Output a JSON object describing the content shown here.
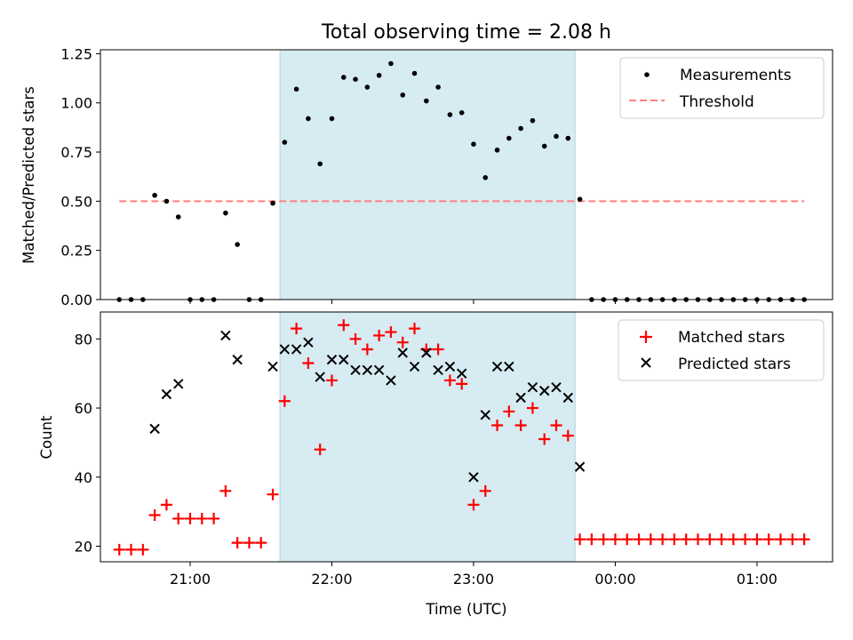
{
  "chart_data": [
    {
      "type": "scatter",
      "title": "Total observing time = 2.08 h",
      "xlabel": "",
      "ylabel": "Matched/Predicted stars",
      "xlim": [
        "20:22",
        "01:32"
      ],
      "ylim": [
        0,
        1.27
      ],
      "yticks": [
        0.0,
        0.25,
        0.5,
        0.75,
        1.0,
        1.25
      ],
      "ytick_labels": [
        "0.00",
        "0.25",
        "0.50",
        "0.75",
        "1.00",
        "1.25"
      ],
      "shaded_interval": [
        "21:38",
        "23:43"
      ],
      "legend_position": "top-right",
      "series": [
        {
          "name": "Measurements",
          "marker": "dot",
          "color": "#000000",
          "x": [
            "20:30",
            "20:35",
            "20:40",
            "20:45",
            "20:50",
            "20:55",
            "21:00",
            "21:05",
            "21:10",
            "21:15",
            "21:20",
            "21:25",
            "21:30",
            "21:35",
            "21:40",
            "21:45",
            "21:50",
            "21:55",
            "22:00",
            "22:05",
            "22:10",
            "22:15",
            "22:20",
            "22:25",
            "22:30",
            "22:35",
            "22:40",
            "22:45",
            "22:50",
            "22:55",
            "23:00",
            "23:05",
            "23:10",
            "23:15",
            "23:20",
            "23:25",
            "23:30",
            "23:35",
            "23:40",
            "23:45",
            "23:50",
            "23:55",
            "00:00",
            "00:05",
            "00:10",
            "00:15",
            "00:20",
            "00:25",
            "00:30",
            "00:35",
            "00:40",
            "00:45",
            "00:50",
            "00:55",
            "01:00",
            "01:05",
            "01:10",
            "01:15",
            "01:20"
          ],
          "y": [
            0.0,
            0.0,
            0.0,
            0.53,
            0.5,
            0.42,
            0.0,
            0.0,
            0.0,
            0.44,
            0.28,
            0.0,
            0.0,
            0.49,
            0.8,
            1.07,
            0.92,
            0.69,
            0.92,
            1.13,
            1.12,
            1.08,
            1.14,
            1.2,
            1.04,
            1.15,
            1.01,
            1.08,
            0.94,
            0.95,
            0.79,
            0.62,
            0.76,
            0.82,
            0.87,
            0.91,
            0.78,
            0.83,
            0.82,
            0.51,
            0.0,
            0.0,
            0.0,
            0.0,
            0.0,
            0.0,
            0.0,
            0.0,
            0.0,
            0.0,
            0.0,
            0.0,
            0.0,
            0.0,
            0.0,
            0.0,
            0.0,
            0.0,
            0.0
          ]
        },
        {
          "name": "Threshold",
          "style": "dashed",
          "color": "#ff7f7f",
          "x": [
            "20:30",
            "01:20"
          ],
          "y": [
            0.5,
            0.5
          ]
        }
      ]
    },
    {
      "type": "scatter",
      "title": "",
      "xlabel": "Time (UTC)",
      "ylabel": "Count",
      "xlim": [
        "20:22",
        "01:32"
      ],
      "ylim": [
        15.5,
        87.8
      ],
      "yticks": [
        20,
        40,
        60,
        80
      ],
      "ytick_labels": [
        "20",
        "40",
        "60",
        "80"
      ],
      "xticks": [
        "21:00",
        "22:00",
        "23:00",
        "00:00",
        "01:00"
      ],
      "xtick_labels": [
        "21:00",
        "22:00",
        "23:00",
        "00:00",
        "01:00"
      ],
      "shaded_interval": [
        "21:38",
        "23:43"
      ],
      "legend_position": "top-right",
      "series": [
        {
          "name": "Matched stars",
          "marker": "plus",
          "color": "#ff0000",
          "x": [
            "20:30",
            "20:35",
            "20:40",
            "20:45",
            "20:50",
            "20:55",
            "21:00",
            "21:05",
            "21:10",
            "21:15",
            "21:20",
            "21:25",
            "21:30",
            "21:35",
            "21:40",
            "21:45",
            "21:50",
            "21:55",
            "22:00",
            "22:05",
            "22:10",
            "22:15",
            "22:20",
            "22:25",
            "22:30",
            "22:35",
            "22:40",
            "22:45",
            "22:50",
            "22:55",
            "23:00",
            "23:05",
            "23:10",
            "23:15",
            "23:20",
            "23:25",
            "23:30",
            "23:35",
            "23:40",
            "23:45",
            "23:50",
            "23:55",
            "00:00",
            "00:05",
            "00:10",
            "00:15",
            "00:20",
            "00:25",
            "00:30",
            "00:35",
            "00:40",
            "00:45",
            "00:50",
            "00:55",
            "01:00",
            "01:05",
            "01:10",
            "01:15",
            "01:20"
          ],
          "y": [
            19,
            19,
            19,
            29,
            32,
            28,
            28,
            28,
            28,
            36,
            21,
            21,
            21,
            35,
            62,
            83,
            73,
            48,
            68,
            84,
            80,
            77,
            81,
            82,
            79,
            83,
            77,
            77,
            68,
            67,
            32,
            36,
            55,
            59,
            55,
            60,
            51,
            55,
            52,
            22,
            22,
            22,
            22,
            22,
            22,
            22,
            22,
            22,
            22,
            22,
            22,
            22,
            22,
            22,
            22,
            22,
            22,
            22,
            22
          ]
        },
        {
          "name": "Predicted stars",
          "marker": "x",
          "color": "#000000",
          "x": [
            "20:45",
            "20:50",
            "20:55",
            "21:15",
            "21:20",
            "21:35",
            "21:40",
            "21:45",
            "21:50",
            "21:55",
            "22:00",
            "22:05",
            "22:10",
            "22:15",
            "22:20",
            "22:25",
            "22:30",
            "22:35",
            "22:40",
            "22:45",
            "22:50",
            "22:55",
            "23:00",
            "23:05",
            "23:10",
            "23:15",
            "23:20",
            "23:25",
            "23:30",
            "23:35",
            "23:40",
            "23:45"
          ],
          "y": [
            54,
            64,
            67,
            81,
            74,
            72,
            77,
            77,
            79,
            69,
            74,
            74,
            71,
            71,
            71,
            68,
            76,
            72,
            76,
            71,
            72,
            70,
            40,
            58,
            72,
            72,
            63,
            66,
            65,
            66,
            63,
            43
          ]
        }
      ]
    }
  ]
}
